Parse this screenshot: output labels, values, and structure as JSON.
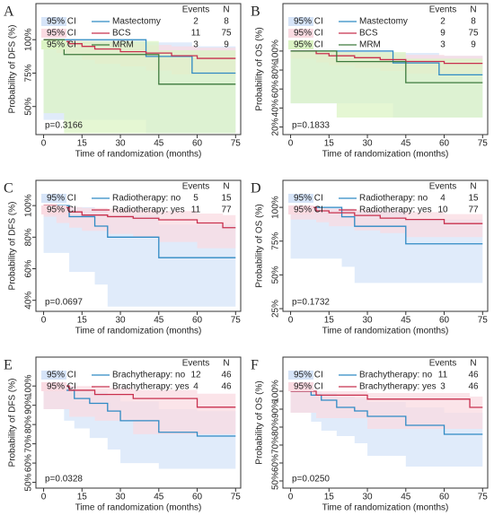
{
  "chart_data": [
    {
      "type": "step",
      "label": "A",
      "ylabel": "Probability of DFS (%)",
      "xlabel": "Time of randomization (months)",
      "pvalue": "p=0.3166",
      "events_header": "Events",
      "n_header": "N",
      "xlim": [
        -3,
        77
      ],
      "xticks": [
        0,
        15,
        30,
        45,
        60,
        75
      ],
      "ylim": [
        29,
        127
      ],
      "yticks": [
        {
          "value": 50,
          "label": "50%"
        },
        {
          "value": 75,
          "label": "75%"
        },
        {
          "value": 100,
          "label": "100%"
        }
      ],
      "series": [
        {
          "name": "Mastectomy",
          "ci_label": "95% CI",
          "events": 2,
          "n": 8,
          "color": "#2f8ac4",
          "ci_color": "#d6e4f8",
          "x": [
            0,
            40,
            58,
            75
          ],
          "values": [
            100,
            87.5,
            75,
            75
          ],
          "ci_lower": [
            100,
            40,
            30,
            30
          ],
          "ci_upper": [
            100,
            98,
            95,
            95
          ]
        },
        {
          "name": "BCS",
          "ci_label": "95% CI",
          "events": 11,
          "n": 75,
          "color": "#c8304e",
          "ci_color": "#fadbe2",
          "x": [
            0,
            5,
            10,
            15,
            20,
            30,
            40,
            50,
            60,
            75
          ],
          "values": [
            100,
            98.6,
            97,
            95,
            93,
            91,
            90,
            88,
            86,
            86
          ],
          "ci_lower": [
            100,
            93,
            90,
            88,
            85,
            82,
            80,
            77,
            74,
            74
          ],
          "ci_upper": [
            100,
            100,
            99.5,
            99,
            98,
            97,
            96,
            95,
            94,
            94
          ]
        },
        {
          "name": "MRM",
          "ci_label": "95% CI",
          "events": 3,
          "n": 9,
          "color": "#3d7a3d",
          "ci_color": "#dcf4c4",
          "x": [
            0,
            8,
            45,
            75
          ],
          "values": [
            100,
            88.9,
            66.7,
            66.7
          ],
          "ci_lower": [
            100,
            45,
            30,
            30
          ],
          "ci_upper": [
            100,
            99,
            92,
            92
          ]
        }
      ]
    },
    {
      "type": "step",
      "label": "B",
      "ylabel": "Probability of OS (%)",
      "xlabel": "Time of randomization (months)",
      "pvalue": "p=0.1833",
      "events_header": "Events",
      "n_header": "N",
      "xlim": [
        -3,
        77
      ],
      "xticks": [
        0,
        15,
        30,
        45,
        60,
        75
      ],
      "ylim": [
        12,
        150
      ],
      "yticks": [
        {
          "value": 20,
          "label": "20%"
        },
        {
          "value": 40,
          "label": "40%"
        },
        {
          "value": 60,
          "label": "60%"
        },
        {
          "value": 80,
          "label": "80%"
        },
        {
          "value": 100,
          "label": "100%"
        }
      ],
      "series": [
        {
          "name": "Mastectomy",
          "ci_label": "95% CI",
          "events": 2,
          "n": 8,
          "color": "#2f8ac4",
          "ci_color": "#d6e4f8",
          "x": [
            0,
            40,
            58,
            75
          ],
          "values": [
            100,
            87.5,
            75,
            75
          ],
          "ci_lower": [
            100,
            45,
            30,
            30
          ],
          "ci_upper": [
            100,
            98,
            95,
            95
          ]
        },
        {
          "name": "BCS",
          "ci_label": "95% CI",
          "events": 9,
          "n": 75,
          "color": "#c8304e",
          "ci_color": "#fadbe2",
          "x": [
            0,
            10,
            15,
            25,
            35,
            45,
            60,
            75
          ],
          "values": [
            100,
            97.3,
            95,
            93,
            91,
            89,
            87,
            87
          ],
          "ci_lower": [
            100,
            92,
            88,
            85,
            82,
            79,
            76,
            76
          ],
          "ci_upper": [
            100,
            99.5,
            99,
            98,
            97,
            96,
            95,
            95
          ]
        },
        {
          "name": "MRM",
          "ci_label": "95% CI",
          "events": 3,
          "n": 9,
          "color": "#3d7a3d",
          "ci_color": "#dcf4c4",
          "x": [
            0,
            18,
            45,
            75
          ],
          "values": [
            100,
            88.9,
            66.7,
            66.7
          ],
          "ci_lower": [
            100,
            45,
            30,
            30
          ],
          "ci_upper": [
            100,
            99,
            92,
            92
          ]
        }
      ]
    },
    {
      "type": "step",
      "label": "C",
      "ylabel": "Probability of DFS (%)",
      "xlabel": "Time of randomization (months)",
      "pvalue": "p=0.0697",
      "events_header": "Events",
      "n_header": "N",
      "xlim": [
        -3,
        77
      ],
      "xticks": [
        0,
        15,
        30,
        45,
        60,
        75
      ],
      "ylim": [
        33,
        116
      ],
      "yticks": [
        {
          "value": 40,
          "label": "40%"
        },
        {
          "value": 60,
          "label": "60%"
        },
        {
          "value": 80,
          "label": "80%"
        },
        {
          "value": 100,
          "label": "100%"
        }
      ],
      "series": [
        {
          "name": "Radiotherapy: no",
          "ci_label": "95% CI",
          "events": 5,
          "n": 15,
          "color": "#2f8ac4",
          "ci_color": "#d6e4f8",
          "x": [
            0,
            10,
            20,
            25,
            45,
            75
          ],
          "values": [
            100,
            93,
            87,
            80,
            67,
            67
          ],
          "ci_lower": [
            100,
            70,
            58,
            50,
            36,
            36
          ],
          "ci_upper": [
            100,
            99,
            97,
            94,
            88,
            88
          ]
        },
        {
          "name": "Radiotherapy: yes",
          "ci_label": "95% CI",
          "events": 11,
          "n": 77,
          "color": "#c8304e",
          "ci_color": "#fadbe2",
          "x": [
            0,
            5,
            10,
            15,
            25,
            35,
            45,
            60,
            70,
            75
          ],
          "values": [
            100,
            98.7,
            96,
            94,
            93,
            92,
            91,
            89,
            86,
            86
          ],
          "ci_lower": [
            100,
            93,
            89,
            86,
            84,
            82,
            80,
            77,
            73,
            73
          ],
          "ci_upper": [
            100,
            100,
            99,
            98.5,
            98,
            97,
            96.5,
            95,
            94,
            94
          ]
        }
      ]
    },
    {
      "type": "step",
      "label": "D",
      "ylabel": "Probability of OS (%)",
      "xlabel": "Time of randomization (months)",
      "pvalue": "p=0.1732",
      "events_header": "Events",
      "n_header": "N",
      "xlim": [
        -3,
        77
      ],
      "xticks": [
        0,
        15,
        30,
        45,
        60,
        75
      ],
      "ylim": [
        23,
        120
      ],
      "yticks": [
        {
          "value": 25,
          "label": "25%"
        },
        {
          "value": 50,
          "label": "50%"
        },
        {
          "value": 75,
          "label": "75%"
        },
        {
          "value": 100,
          "label": "100%"
        }
      ],
      "series": [
        {
          "name": "Radiotherapy: no",
          "ci_label": "95% CI",
          "events": 4,
          "n": 15,
          "color": "#2f8ac4",
          "ci_color": "#d6e4f8",
          "x": [
            0,
            20,
            25,
            45,
            75
          ],
          "values": [
            100,
            93,
            86,
            73,
            73
          ],
          "ci_lower": [
            100,
            62,
            56,
            44,
            44
          ],
          "ci_upper": [
            100,
            99,
            97,
            91,
            91
          ]
        },
        {
          "name": "Radiotherapy: yes",
          "ci_label": "95% CI",
          "events": 10,
          "n": 77,
          "color": "#c8304e",
          "ci_color": "#fadbe2",
          "x": [
            0,
            10,
            15,
            25,
            35,
            45,
            60,
            75
          ],
          "values": [
            100,
            97.4,
            96,
            94,
            92,
            91,
            88,
            88
          ],
          "ci_lower": [
            100,
            91,
            89,
            86,
            83,
            81,
            78,
            78
          ],
          "ci_upper": [
            100,
            99.5,
            99,
            98,
            97,
            96.5,
            95,
            95
          ]
        }
      ]
    },
    {
      "type": "step",
      "label": "E",
      "ylabel": "Probability of DFS (%)",
      "xlabel": "Time of randomization (months)",
      "pvalue": "p=0.0328",
      "events_header": "Events",
      "n_header": "N",
      "xlim": [
        -3,
        77
      ],
      "xticks": [
        0,
        15,
        30,
        45,
        60,
        75
      ],
      "ylim": [
        47,
        115
      ],
      "yticks": [
        {
          "value": 50,
          "label": "50%"
        },
        {
          "value": 60,
          "label": "60%"
        },
        {
          "value": 70,
          "label": "70%"
        },
        {
          "value": 80,
          "label": "80%"
        },
        {
          "value": 90,
          "label": "90%"
        },
        {
          "value": 100,
          "label": "100%"
        }
      ],
      "series": [
        {
          "name": "Brachytherapy: no",
          "ci_label": "95% CI",
          "events": 12,
          "n": 46,
          "color": "#2f8ac4",
          "ci_color": "#d6e4f8",
          "x": [
            0,
            8,
            12,
            18,
            25,
            30,
            45,
            60,
            75
          ],
          "values": [
            100,
            97.8,
            93.5,
            91,
            87,
            82,
            76,
            74,
            74
          ],
          "ci_lower": [
            100,
            88,
            82,
            78,
            73,
            67,
            60,
            57,
            57
          ],
          "ci_upper": [
            100,
            100,
            98,
            97,
            95,
            92,
            88,
            87,
            87
          ]
        },
        {
          "name": "Brachytherapy: yes",
          "ci_label": "95% CI",
          "events": 4,
          "n": 46,
          "color": "#c8304e",
          "ci_color": "#fadbe2",
          "x": [
            0,
            10,
            20,
            35,
            60,
            75
          ],
          "values": [
            100,
            97.8,
            95.6,
            93.5,
            89,
            89
          ],
          "ci_lower": [
            100,
            88,
            84,
            82,
            75,
            75
          ],
          "ci_upper": [
            100,
            100,
            99,
            98,
            96,
            96
          ]
        }
      ]
    },
    {
      "type": "step",
      "label": "F",
      "ylabel": "Probability of OS (%)",
      "xlabel": "Time of randomization (months)",
      "pvalue": "p=0.0250",
      "events_header": "Events",
      "n_header": "N",
      "xlim": [
        -3,
        77
      ],
      "xticks": [
        0,
        15,
        30,
        45,
        60,
        75
      ],
      "ylim": [
        46,
        119
      ],
      "yticks": [
        {
          "value": 50,
          "label": "50%"
        },
        {
          "value": 60,
          "label": "60%"
        },
        {
          "value": 70,
          "label": "70%"
        },
        {
          "value": 80,
          "label": "80%"
        },
        {
          "value": 90,
          "label": "90%"
        },
        {
          "value": 100,
          "label": "100%"
        }
      ],
      "series": [
        {
          "name": "Brachytherapy: no",
          "ci_label": "95% CI",
          "events": 11,
          "n": 46,
          "color": "#2f8ac4",
          "ci_color": "#d6e4f8",
          "x": [
            0,
            8,
            12,
            18,
            25,
            30,
            45,
            60,
            75
          ],
          "values": [
            100,
            97.8,
            95,
            91,
            89,
            86,
            81,
            76,
            76
          ],
          "ci_lower": [
            100,
            88,
            83,
            78,
            75,
            71,
            64,
            58,
            58
          ],
          "ci_upper": [
            100,
            100,
            99,
            97,
            96,
            94,
            91,
            88,
            88
          ]
        },
        {
          "name": "Brachytherapy: yes",
          "ci_label": "95% CI",
          "events": 3,
          "n": 46,
          "color": "#c8304e",
          "ci_color": "#fadbe2",
          "x": [
            0,
            10,
            30,
            70,
            75
          ],
          "values": [
            100,
            97.8,
            95.6,
            91,
            91
          ],
          "ci_lower": [
            100,
            88,
            85,
            79,
            79
          ],
          "ci_upper": [
            100,
            100,
            99,
            97,
            97
          ]
        }
      ]
    }
  ]
}
